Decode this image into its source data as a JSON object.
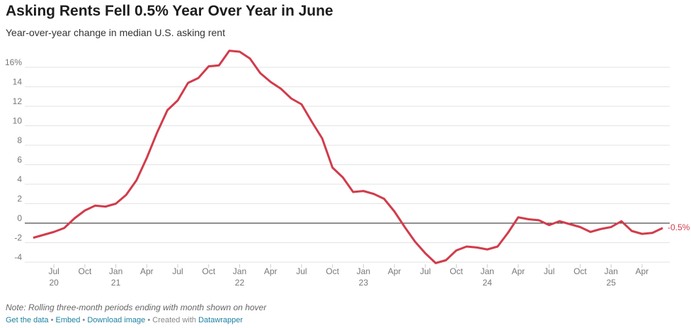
{
  "chart_data": {
    "type": "line",
    "title": "Asking Rents Fell 0.5% Year Over Year in June",
    "subtitle": "Year-over-year change in median U.S. asking rent",
    "note": "Note: Rolling three-month periods ending with month shown on hover",
    "x": [
      "2020-05",
      "2020-06",
      "2020-07",
      "2020-08",
      "2020-09",
      "2020-10",
      "2020-11",
      "2020-12",
      "2021-01",
      "2021-02",
      "2021-03",
      "2021-04",
      "2021-05",
      "2021-06",
      "2021-07",
      "2021-08",
      "2021-09",
      "2021-10",
      "2021-11",
      "2021-12",
      "2022-01",
      "2022-02",
      "2022-03",
      "2022-04",
      "2022-05",
      "2022-06",
      "2022-07",
      "2022-08",
      "2022-09",
      "2022-10",
      "2022-11",
      "2022-12",
      "2023-01",
      "2023-02",
      "2023-03",
      "2023-04",
      "2023-05",
      "2023-06",
      "2023-07",
      "2023-08",
      "2023-09",
      "2023-10",
      "2023-11",
      "2023-12",
      "2024-01",
      "2024-02",
      "2024-03",
      "2024-04",
      "2024-05",
      "2024-06",
      "2024-07",
      "2024-08",
      "2024-09",
      "2024-10",
      "2024-11",
      "2024-12",
      "2025-01",
      "2025-02",
      "2025-03",
      "2025-04",
      "2025-05",
      "2025-06"
    ],
    "series": [
      {
        "color": "#d13c4b",
        "values": [
          -1.5,
          -1.2,
          -0.9,
          -0.5,
          0.5,
          1.3,
          1.8,
          1.7,
          2.0,
          2.9,
          4.4,
          6.7,
          9.3,
          11.6,
          12.6,
          14.4,
          14.9,
          16.1,
          16.2,
          17.7,
          17.6,
          16.9,
          15.4,
          14.5,
          13.8,
          12.8,
          12.2,
          10.4,
          8.7,
          5.7,
          4.7,
          3.2,
          3.3,
          3.0,
          2.5,
          1.2,
          -0.4,
          -1.9,
          -3.1,
          -4.1,
          -3.8,
          -2.8,
          -2.4,
          -2.5,
          -2.7,
          -2.4,
          -1.0,
          0.6,
          0.4,
          0.3,
          -0.2,
          0.2,
          -0.1,
          -0.4,
          -0.9,
          -0.6,
          -0.4,
          0.2,
          -0.8,
          -1.1,
          -1.0,
          -0.5
        ],
        "value_labels": [
          null,
          null,
          null,
          null,
          null,
          null,
          null,
          null,
          null,
          null,
          null,
          null,
          null,
          null,
          null,
          null,
          null,
          null,
          null,
          null,
          null,
          null,
          null,
          null,
          null,
          null,
          null,
          null,
          null,
          null,
          null,
          null,
          null,
          null,
          null,
          null,
          null,
          null,
          null,
          null,
          null,
          null,
          null,
          null,
          null,
          null,
          null,
          null,
          null,
          null,
          null,
          null,
          null,
          null,
          null,
          null,
          null,
          null,
          null,
          null,
          null,
          "-0.5%"
        ]
      }
    ],
    "ylim": [
      -4,
      18
    ],
    "yticks": [
      -4,
      -2,
      0,
      2,
      4,
      6,
      8,
      10,
      12,
      14,
      {
        "value": 16,
        "label": "16%"
      }
    ],
    "xticks": [
      {
        "value": "2020-07",
        "label": "Jul",
        "year": "20"
      },
      {
        "value": "2020-10",
        "label": "Oct"
      },
      {
        "value": "2021-01",
        "label": "Jan",
        "year": "21"
      },
      {
        "value": "2021-04",
        "label": "Apr"
      },
      {
        "value": "2021-07",
        "label": "Jul"
      },
      {
        "value": "2021-10",
        "label": "Oct"
      },
      {
        "value": "2022-01",
        "label": "Jan",
        "year": "22"
      },
      {
        "value": "2022-04",
        "label": "Apr"
      },
      {
        "value": "2022-07",
        "label": "Jul"
      },
      {
        "value": "2022-10",
        "label": "Oct"
      },
      {
        "value": "2023-01",
        "label": "Jan",
        "year": "23"
      },
      {
        "value": "2023-04",
        "label": "Apr"
      },
      {
        "value": "2023-07",
        "label": "Jul"
      },
      {
        "value": "2023-10",
        "label": "Oct"
      },
      {
        "value": "2024-01",
        "label": "Jan",
        "year": "24"
      },
      {
        "value": "2024-04",
        "label": "Apr"
      },
      {
        "value": "2024-07",
        "label": "Jul"
      },
      {
        "value": "2024-10",
        "label": "Oct"
      },
      {
        "value": "2025-01",
        "label": "Jan",
        "year": "25"
      },
      {
        "value": "2025-04",
        "label": "Apr"
      }
    ],
    "grid": true
  },
  "footer": {
    "links": [
      "Get the data",
      "Embed",
      "Download image"
    ],
    "credit": "Created with",
    "credit_link": "Datawrapper"
  }
}
